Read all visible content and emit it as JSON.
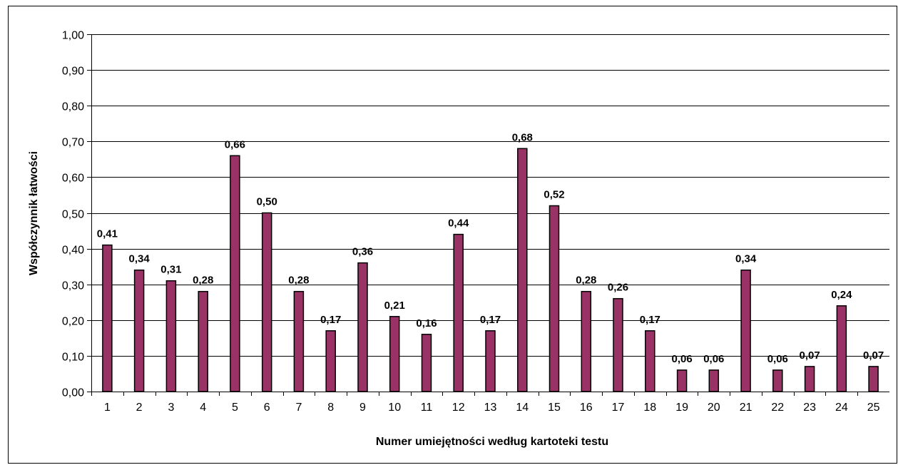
{
  "chart_data": {
    "type": "bar",
    "title": "",
    "xlabel": "Numer umiejętności według kartoteki testu",
    "ylabel": "Współczynnik łatwości",
    "ylim": [
      0,
      1
    ],
    "ytick_step": 0.1,
    "ytick_labels": [
      "0,00",
      "0,10",
      "0,20",
      "0,30",
      "0,40",
      "0,50",
      "0,60",
      "0,70",
      "0,80",
      "0,90",
      "1,00"
    ],
    "grid": true,
    "legend": "none",
    "bar_color": "#993366",
    "categories": [
      "1",
      "2",
      "3",
      "4",
      "5",
      "6",
      "7",
      "8",
      "9",
      "10",
      "11",
      "12",
      "13",
      "14",
      "15",
      "16",
      "17",
      "18",
      "19",
      "20",
      "21",
      "22",
      "23",
      "24",
      "25"
    ],
    "values": [
      0.41,
      0.34,
      0.31,
      0.28,
      0.66,
      0.5,
      0.28,
      0.17,
      0.36,
      0.21,
      0.16,
      0.44,
      0.17,
      0.68,
      0.52,
      0.28,
      0.26,
      0.17,
      0.06,
      0.06,
      0.34,
      0.06,
      0.07,
      0.24,
      0.07
    ],
    "data_labels": [
      "0,41",
      "0,34",
      "0,31",
      "0,28",
      "0,66",
      "0,50",
      "0,28",
      "0,17",
      "0,36",
      "0,21",
      "0,16",
      "0,44",
      "0,17",
      "0,68",
      "0,52",
      "0,28",
      "0,26",
      "0,17",
      "0,06",
      "0,06",
      "0,34",
      "0,06",
      "0,07",
      "0,24",
      "0,07"
    ]
  }
}
